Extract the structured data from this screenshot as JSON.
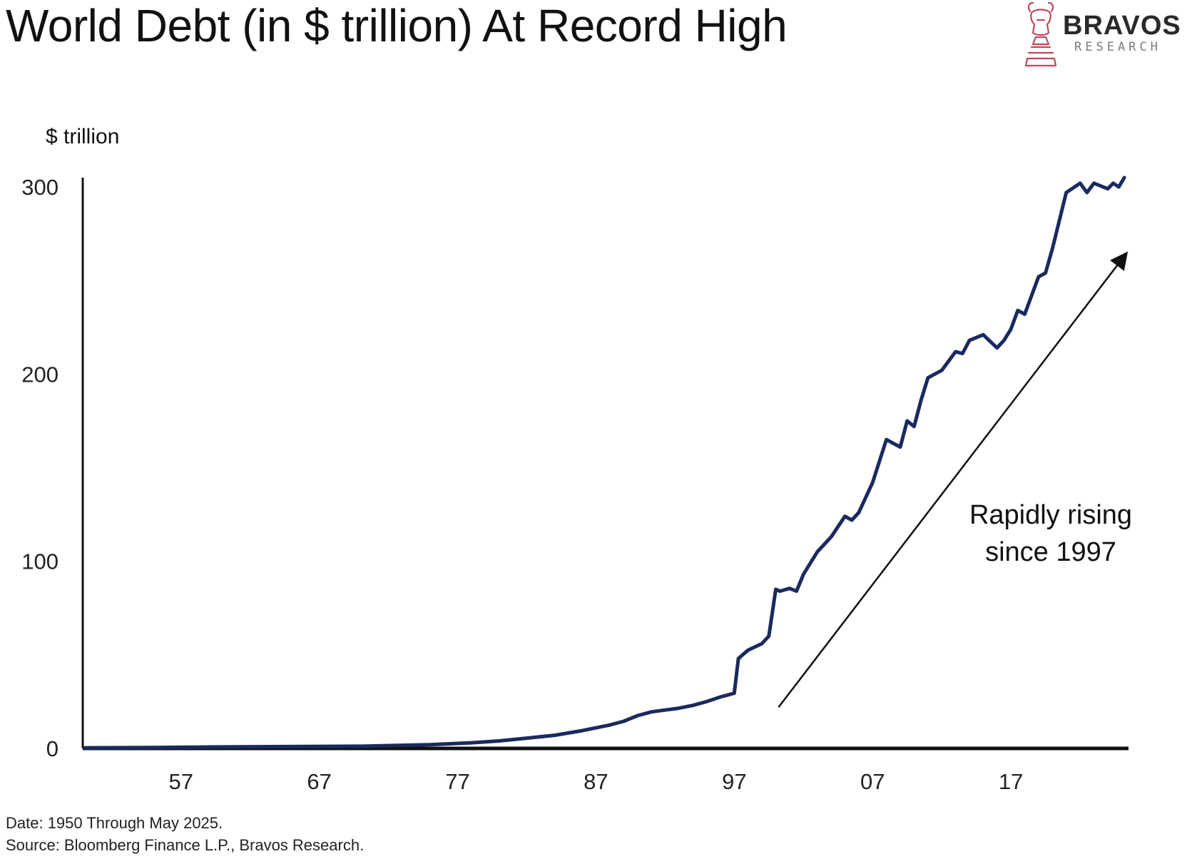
{
  "header": {
    "title": "World Debt (in $ trillion) At Record High"
  },
  "logo": {
    "name": "BRAVOS",
    "subtitle": "RESEARCH",
    "icon": "bull-chess-knight-icon",
    "color": "#c0485a"
  },
  "footer": {
    "date_note": "Date: 1950 Through May 2025.",
    "source_note": "Source: Bloomberg Finance L.P., Bravos Research."
  },
  "colors": {
    "line": "#1a2a5e",
    "axis": "#111111",
    "annotation": "#111111"
  },
  "chart_data": {
    "type": "line",
    "title": "World Debt (in $ trillion) At Record High",
    "ylabel": "$ trillion",
    "xlabel": "",
    "xlim": [
      1950,
      2025.4
    ],
    "ylim": [
      0,
      300
    ],
    "yticks": [
      0,
      100,
      200,
      300
    ],
    "ytick_labels": [
      "0",
      "100",
      "200",
      "300"
    ],
    "xticks": [
      1957,
      1967,
      1977,
      1987,
      1997,
      2007,
      2017
    ],
    "xtick_labels": [
      "57",
      "67",
      "77",
      "87",
      "97",
      "07",
      "17"
    ],
    "grid": false,
    "legend": "none",
    "annotation": {
      "lines": [
        "Rapidly rising",
        "since 1997"
      ],
      "arrow_from": [
        2000.2,
        22
      ],
      "arrow_to": [
        2025.3,
        264
      ]
    },
    "series": [
      {
        "x": [
          1950,
          1955,
          1960,
          1965,
          1970,
          1975,
          1978,
          1980,
          1982,
          1984,
          1986,
          1988,
          1989,
          1990,
          1991,
          1992,
          1993,
          1994,
          1995,
          1996,
          1997,
          1997.3,
          1997.6,
          1998,
          1999,
          1999.5,
          2000,
          2000.3,
          2001,
          2001.5,
          2002,
          2003,
          2004,
          2005,
          2005.5,
          2006,
          2007,
          2008,
          2008.5,
          2009,
          2009.5,
          2010,
          2010.5,
          2011,
          2012,
          2013,
          2013.5,
          2014,
          2015,
          2016,
          2016.5,
          2017,
          2017.5,
          2018,
          2019,
          2019.5,
          2020,
          2021,
          2022,
          2022.5,
          2023,
          2024,
          2024.4,
          2024.8,
          2025.2
        ],
        "values": [
          0.3,
          0.5,
          0.8,
          1.0,
          1.2,
          2.0,
          3.0,
          4.0,
          5.5,
          7.0,
          9.5,
          12.5,
          14.5,
          17.5,
          19.5,
          20.5,
          21.5,
          23,
          25,
          27.5,
          29.5,
          48,
          50,
          52.5,
          56,
          60,
          85,
          84,
          85.5,
          84,
          93,
          105,
          113,
          124,
          122,
          126,
          142,
          165,
          163,
          161,
          175,
          172,
          186,
          198,
          202,
          212,
          211,
          218,
          221,
          214,
          218,
          224,
          234,
          232,
          252,
          254,
          267,
          297,
          302,
          297,
          302,
          299,
          302,
          300,
          305
        ]
      }
    ]
  }
}
